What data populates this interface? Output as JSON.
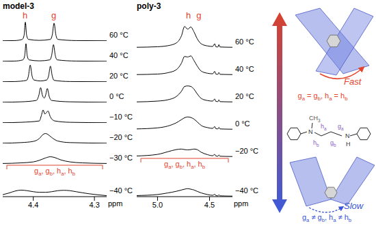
{
  "chart_data": [
    {
      "type": "line",
      "title": "model-3",
      "x_label": "ppm",
      "xlim": [
        4.45,
        4.28
      ],
      "xticks": [
        4.4,
        4.3
      ],
      "ylim": [
        0,
        1
      ],
      "tick_labels": "x",
      "color": "#000000",
      "annotations": [
        {
          "text": "h",
          "x": 4.413
        },
        {
          "text": "g",
          "x": 4.366
        },
        {
          "text": "ga, gb, ha, hb"
        }
      ],
      "series": [
        {
          "name": "60 °C",
          "x": [
            4.45,
            4.43,
            4.418,
            4.415,
            4.413,
            4.411,
            4.408,
            4.39,
            4.372,
            4.369,
            4.366,
            4.363,
            4.36,
            4.33,
            4.28
          ],
          "values": [
            0.01,
            0.02,
            0.08,
            0.3,
            0.95,
            0.3,
            0.08,
            0.03,
            0.08,
            0.3,
            0.9,
            0.3,
            0.08,
            0.02,
            0.01
          ]
        },
        {
          "name": "40 °C",
          "x": [
            4.45,
            4.43,
            4.417,
            4.414,
            4.412,
            4.41,
            4.407,
            4.39,
            4.373,
            4.37,
            4.367,
            4.364,
            4.361,
            4.33,
            4.28
          ],
          "values": [
            0.01,
            0.02,
            0.08,
            0.3,
            0.9,
            0.3,
            0.08,
            0.03,
            0.08,
            0.3,
            0.85,
            0.3,
            0.08,
            0.02,
            0.01
          ]
        },
        {
          "name": "20 °C",
          "x": [
            4.45,
            4.43,
            4.411,
            4.408,
            4.405,
            4.402,
            4.399,
            4.388,
            4.378,
            4.375,
            4.372,
            4.369,
            4.366,
            4.34,
            4.28
          ],
          "values": [
            0.01,
            0.02,
            0.08,
            0.3,
            0.85,
            0.3,
            0.1,
            0.05,
            0.1,
            0.3,
            0.8,
            0.3,
            0.08,
            0.02,
            0.01
          ]
        },
        {
          "name": "0 °C",
          "x": [
            4.45,
            4.42,
            4.395,
            4.391,
            4.388,
            4.385,
            4.382,
            4.38,
            4.377,
            4.374,
            4.37,
            4.34,
            4.28
          ],
          "values": [
            0.01,
            0.03,
            0.1,
            0.35,
            0.75,
            0.35,
            0.22,
            0.35,
            0.7,
            0.3,
            0.1,
            0.03,
            0.01
          ]
        },
        {
          "name": "−10 °C",
          "x": [
            4.45,
            4.42,
            4.39,
            4.387,
            4.384,
            4.381,
            4.379,
            4.376,
            4.372,
            4.365,
            4.34,
            4.28
          ],
          "values": [
            0.01,
            0.03,
            0.1,
            0.35,
            0.65,
            0.45,
            0.5,
            0.6,
            0.3,
            0.1,
            0.03,
            0.01
          ]
        },
        {
          "name": "−20 °C",
          "x": [
            4.45,
            4.42,
            4.4,
            4.39,
            4.384,
            4.38,
            4.376,
            4.37,
            4.36,
            4.34,
            4.28
          ],
          "values": [
            0.01,
            0.04,
            0.1,
            0.25,
            0.45,
            0.5,
            0.45,
            0.3,
            0.12,
            0.04,
            0.01
          ]
        },
        {
          "name": "−30 °C",
          "x": [
            4.45,
            4.42,
            4.4,
            4.39,
            4.38,
            4.372,
            4.365,
            4.355,
            4.34,
            4.32,
            4.28
          ],
          "values": [
            0.02,
            0.05,
            0.1,
            0.18,
            0.3,
            0.36,
            0.32,
            0.2,
            0.1,
            0.05,
            0.02
          ]
        },
        {
          "name": "−40 °C",
          "x": [
            4.45,
            4.44,
            4.43,
            4.42,
            4.41,
            4.4,
            4.39,
            4.38,
            4.37,
            4.36,
            4.35,
            4.34,
            4.33,
            4.31,
            4.29,
            4.28
          ],
          "values": [
            0.1,
            0.18,
            0.28,
            0.33,
            0.3,
            0.25,
            0.22,
            0.22,
            0.25,
            0.3,
            0.32,
            0.3,
            0.25,
            0.15,
            0.08,
            0.05
          ]
        }
      ]
    },
    {
      "type": "line",
      "title": "poly-3",
      "x_label": "ppm",
      "xlim": [
        5.2,
        4.28
      ],
      "xticks": [
        {
          "value": 5,
          "label": "5.0"
        },
        4.5
      ],
      "ylim": [
        0,
        1
      ],
      "tick_labels": "x",
      "color": "#000000",
      "annotations": [
        {
          "text": "h",
          "x": 4.7
        },
        {
          "text": "g",
          "x": 4.6
        },
        {
          "text": "ga, gb, ha, hb"
        }
      ],
      "x": [
        5.2,
        5.0,
        4.9,
        4.82,
        4.77,
        4.74,
        4.71,
        4.68,
        4.65,
        4.62,
        4.58,
        4.52,
        4.47,
        4.45,
        4.44,
        4.42,
        4.41,
        4.4,
        4.28
      ],
      "series": [
        {
          "name": "60 °C",
          "values": [
            0.02,
            0.04,
            0.08,
            0.18,
            0.45,
            0.8,
            0.7,
            0.78,
            0.6,
            0.35,
            0.15,
            0.07,
            0.05,
            0.15,
            0.04,
            0.03,
            0.12,
            0.03,
            0.02
          ]
        },
        {
          "name": "40 °C",
          "values": [
            0.02,
            0.04,
            0.09,
            0.2,
            0.45,
            0.7,
            0.68,
            0.72,
            0.55,
            0.35,
            0.15,
            0.07,
            0.05,
            0.14,
            0.04,
            0.03,
            0.1,
            0.03,
            0.02
          ]
        },
        {
          "name": "20 °C",
          "values": [
            0.02,
            0.05,
            0.1,
            0.22,
            0.42,
            0.6,
            0.62,
            0.6,
            0.5,
            0.33,
            0.15,
            0.07,
            0.05,
            0.13,
            0.04,
            0.03,
            0.1,
            0.03,
            0.02
          ]
        },
        {
          "name": "0 °C",
          "values": [
            0.03,
            0.07,
            0.14,
            0.26,
            0.38,
            0.45,
            0.48,
            0.46,
            0.4,
            0.3,
            0.16,
            0.08,
            0.05,
            0.12,
            0.04,
            0.03,
            0.09,
            0.03,
            0.02
          ]
        },
        {
          "name": "−20 °C",
          "values": [
            0.04,
            0.1,
            0.2,
            0.28,
            0.3,
            0.28,
            0.27,
            0.28,
            0.3,
            0.28,
            0.18,
            0.09,
            0.05,
            0.1,
            0.04,
            0.03,
            0.08,
            0.03,
            0.02
          ]
        },
        {
          "name": "−40 °C",
          "values": [
            0.04,
            0.08,
            0.14,
            0.2,
            0.25,
            0.28,
            0.3,
            0.28,
            0.25,
            0.2,
            0.14,
            0.08,
            0.05,
            0.09,
            0.04,
            0.03,
            0.07,
            0.03,
            0.02
          ]
        }
      ]
    }
  ],
  "diagram": {
    "fast": {
      "label": "Fast",
      "caption": "ga = gb, ha = hb"
    },
    "structure": {
      "labels": [
        "CH3",
        "N",
        "ha",
        "ga",
        "hb",
        "gb",
        "N",
        "H"
      ]
    },
    "slow": {
      "label": "Slow",
      "caption": "ga ≠ gb, ha ≠ hb"
    }
  }
}
